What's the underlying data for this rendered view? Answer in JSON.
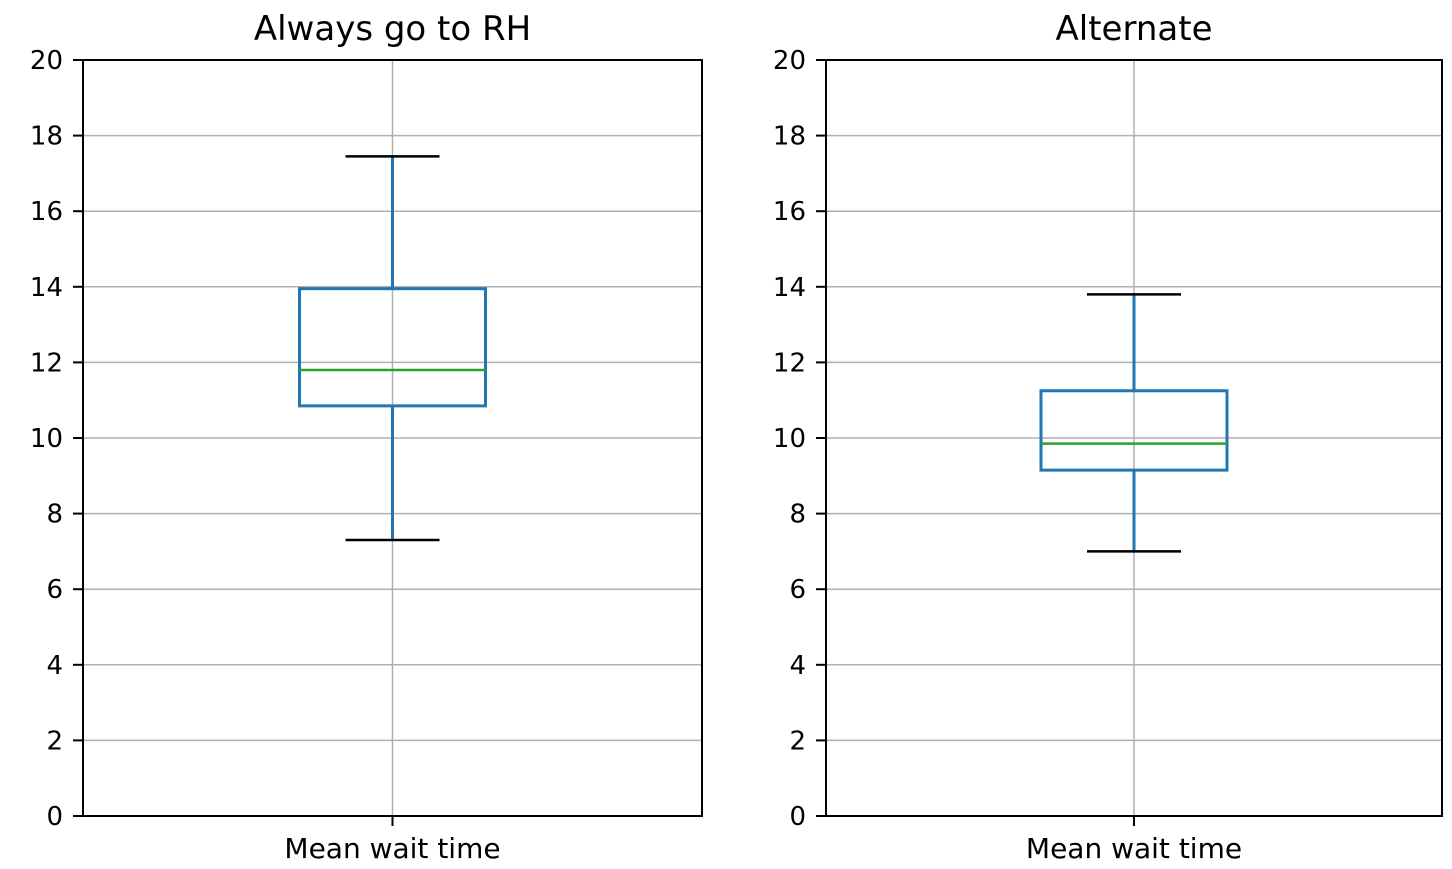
{
  "chart_data": [
    {
      "type": "box",
      "title": "Always go to RH",
      "categories": [
        "Mean wait time"
      ],
      "ylim": [
        0,
        20
      ],
      "yticks": [
        0,
        2,
        4,
        6,
        8,
        10,
        12,
        14,
        16,
        18,
        20
      ],
      "grid": true,
      "box": {
        "whisker_low": 7.3,
        "q1": 10.85,
        "median": 11.8,
        "q3": 13.95,
        "whisker_high": 17.45
      }
    },
    {
      "type": "box",
      "title": "Alternate",
      "categories": [
        "Mean wait time"
      ],
      "ylim": [
        0,
        20
      ],
      "yticks": [
        0,
        2,
        4,
        6,
        8,
        10,
        12,
        14,
        16,
        18,
        20
      ],
      "grid": true,
      "box": {
        "whisker_low": 7.0,
        "q1": 9.15,
        "median": 9.85,
        "q3": 11.25,
        "whisker_high": 13.8
      }
    }
  ],
  "colors": {
    "box": "#1f77b4",
    "median": "#2ca02c",
    "cap": "#000000",
    "grid": "#b0b0b0"
  }
}
